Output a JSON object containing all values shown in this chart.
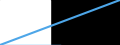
{
  "line_x": [
    0,
    1,
    2,
    3,
    4,
    5,
    6,
    7,
    8,
    9,
    10
  ],
  "line_y": [
    0,
    1,
    2,
    3,
    4,
    5,
    6,
    7,
    8,
    9,
    10
  ],
  "line_color": "#4da6e8",
  "line_width": 1.5,
  "background_left": "#ffffff",
  "background_right": "#111111",
  "fig_background": "#000000",
  "xlim": [
    0,
    10
  ],
  "ylim": [
    0,
    10
  ]
}
